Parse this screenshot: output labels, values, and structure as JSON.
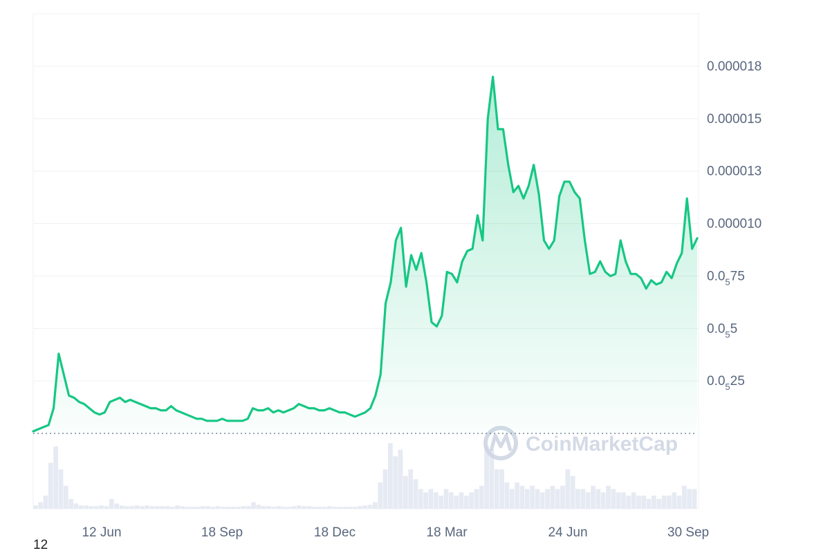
{
  "chart_data": {
    "type": "area",
    "x_tick_labels": [
      "12 Jun",
      "18 Sep",
      "18 Dec",
      "18 Mar",
      "24 Jun",
      "30 Sep"
    ],
    "y_ticks": [
      {
        "value": 2.5e-06,
        "label": {
          "main": "0.0",
          "sub": "5",
          "tail": "25"
        }
      },
      {
        "value": 5e-06,
        "label": {
          "main": "0.0",
          "sub": "5",
          "tail": "5"
        }
      },
      {
        "value": 7.5e-06,
        "label": {
          "main": "0.0",
          "sub": "5",
          "tail": "75"
        }
      },
      {
        "value": 1e-05,
        "label": {
          "main": "0.000010",
          "sub": "",
          "tail": ""
        }
      },
      {
        "value": 1.25e-05,
        "label": {
          "main": "0.000013",
          "sub": "",
          "tail": ""
        }
      },
      {
        "value": 1.5e-05,
        "label": {
          "main": "0.000015",
          "sub": "",
          "tail": ""
        }
      },
      {
        "value": 1.75e-05,
        "label": {
          "main": "0.000018",
          "sub": "",
          "tail": ""
        }
      }
    ],
    "ylim": [
      0,
      2e-05
    ],
    "reference_line": 0,
    "price_series": [
      [
        0,
        1e-07
      ],
      [
        1,
        2e-07
      ],
      [
        2,
        3e-07
      ],
      [
        3,
        4e-07
      ],
      [
        4,
        1.2e-06
      ],
      [
        5,
        3.8e-06
      ],
      [
        6,
        2.8e-06
      ],
      [
        7,
        1.8e-06
      ],
      [
        8,
        1.7e-06
      ],
      [
        9,
        1.5e-06
      ],
      [
        10,
        1.4e-06
      ],
      [
        11,
        1.2e-06
      ],
      [
        12,
        1e-06
      ],
      [
        13,
        9e-07
      ],
      [
        14,
        1e-06
      ],
      [
        15,
        1.5e-06
      ],
      [
        16,
        1.6e-06
      ],
      [
        17,
        1.7e-06
      ],
      [
        18,
        1.5e-06
      ],
      [
        19,
        1.6e-06
      ],
      [
        20,
        1.5e-06
      ],
      [
        21,
        1.4e-06
      ],
      [
        22,
        1.3e-06
      ],
      [
        23,
        1.2e-06
      ],
      [
        24,
        1.2e-06
      ],
      [
        25,
        1.1e-06
      ],
      [
        26,
        1.1e-06
      ],
      [
        27,
        1.3e-06
      ],
      [
        28,
        1.1e-06
      ],
      [
        29,
        1e-06
      ],
      [
        30,
        9e-07
      ],
      [
        31,
        8e-07
      ],
      [
        32,
        7e-07
      ],
      [
        33,
        7e-07
      ],
      [
        34,
        6e-07
      ],
      [
        35,
        6e-07
      ],
      [
        36,
        6e-07
      ],
      [
        37,
        7e-07
      ],
      [
        38,
        6e-07
      ],
      [
        39,
        6e-07
      ],
      [
        40,
        6e-07
      ],
      [
        41,
        6e-07
      ],
      [
        42,
        7e-07
      ],
      [
        43,
        1.2e-06
      ],
      [
        44,
        1.1e-06
      ],
      [
        45,
        1.1e-06
      ],
      [
        46,
        1.2e-06
      ],
      [
        47,
        1e-06
      ],
      [
        48,
        1.1e-06
      ],
      [
        49,
        1e-06
      ],
      [
        50,
        1.1e-06
      ],
      [
        51,
        1.2e-06
      ],
      [
        52,
        1.4e-06
      ],
      [
        53,
        1.3e-06
      ],
      [
        54,
        1.2e-06
      ],
      [
        55,
        1.2e-06
      ],
      [
        56,
        1.1e-06
      ],
      [
        57,
        1.1e-06
      ],
      [
        58,
        1.2e-06
      ],
      [
        59,
        1.1e-06
      ],
      [
        60,
        1e-06
      ],
      [
        61,
        1e-06
      ],
      [
        62,
        9e-07
      ],
      [
        63,
        8e-07
      ],
      [
        64,
        9e-07
      ],
      [
        65,
        1e-06
      ],
      [
        66,
        1.2e-06
      ],
      [
        67,
        1.8e-06
      ],
      [
        68,
        2.8e-06
      ],
      [
        69,
        6.2e-06
      ],
      [
        70,
        7.2e-06
      ],
      [
        71,
        9.2e-06
      ],
      [
        72,
        9.8e-06
      ],
      [
        73,
        7e-06
      ],
      [
        74,
        8.5e-06
      ],
      [
        75,
        7.8e-06
      ],
      [
        76,
        8.6e-06
      ],
      [
        77,
        7.2e-06
      ],
      [
        78,
        5.3e-06
      ],
      [
        79,
        5.1e-06
      ],
      [
        80,
        5.6e-06
      ],
      [
        81,
        7.7e-06
      ],
      [
        82,
        7.6e-06
      ],
      [
        83,
        7.2e-06
      ],
      [
        84,
        8.2e-06
      ],
      [
        85,
        8.7e-06
      ],
      [
        86,
        8.8e-06
      ],
      [
        87,
        1.04e-05
      ],
      [
        88,
        9.2e-06
      ],
      [
        89,
        1.5e-05
      ],
      [
        90,
        1.7e-05
      ],
      [
        91,
        1.45e-05
      ],
      [
        92,
        1.45e-05
      ],
      [
        93,
        1.28e-05
      ],
      [
        94,
        1.15e-05
      ],
      [
        95,
        1.18e-05
      ],
      [
        96,
        1.12e-05
      ],
      [
        97,
        1.18e-05
      ],
      [
        98,
        1.28e-05
      ],
      [
        99,
        1.14e-05
      ],
      [
        100,
        9.2e-06
      ],
      [
        101,
        8.8e-06
      ],
      [
        102,
        9.2e-06
      ],
      [
        103,
        1.13e-05
      ],
      [
        104,
        1.2e-05
      ],
      [
        105,
        1.2e-05
      ],
      [
        106,
        1.15e-05
      ],
      [
        107,
        1.12e-05
      ],
      [
        108,
        9.2e-06
      ],
      [
        109,
        7.6e-06
      ],
      [
        110,
        7.7e-06
      ],
      [
        111,
        8.2e-06
      ],
      [
        112,
        7.7e-06
      ],
      [
        113,
        7.5e-06
      ],
      [
        114,
        7.6e-06
      ],
      [
        115,
        9.2e-06
      ],
      [
        116,
        8.2e-06
      ],
      [
        117,
        7.6e-06
      ],
      [
        118,
        7.6e-06
      ],
      [
        119,
        7.4e-06
      ],
      [
        120,
        6.9e-06
      ],
      [
        121,
        7.3e-06
      ],
      [
        122,
        7.1e-06
      ],
      [
        123,
        7.2e-06
      ],
      [
        124,
        7.7e-06
      ],
      [
        125,
        7.4e-06
      ],
      [
        126,
        8.1e-06
      ],
      [
        127,
        8.6e-06
      ],
      [
        128,
        1.12e-05
      ],
      [
        129,
        8.8e-06
      ],
      [
        130,
        9.3e-06
      ]
    ],
    "volume_series": [
      0.05,
      0.1,
      0.2,
      0.7,
      0.95,
      0.6,
      0.35,
      0.15,
      0.08,
      0.05,
      0.05,
      0.04,
      0.04,
      0.05,
      0.04,
      0.15,
      0.08,
      0.05,
      0.04,
      0.04,
      0.05,
      0.04,
      0.05,
      0.04,
      0.04,
      0.04,
      0.04,
      0.03,
      0.05,
      0.04,
      0.03,
      0.03,
      0.03,
      0.04,
      0.04,
      0.03,
      0.04,
      0.03,
      0.03,
      0.03,
      0.03,
      0.04,
      0.04,
      0.1,
      0.06,
      0.04,
      0.04,
      0.03,
      0.04,
      0.03,
      0.03,
      0.04,
      0.05,
      0.04,
      0.04,
      0.03,
      0.03,
      0.03,
      0.04,
      0.03,
      0.03,
      0.03,
      0.03,
      0.03,
      0.04,
      0.05,
      0.06,
      0.1,
      0.4,
      0.6,
      1.0,
      0.8,
      0.9,
      0.5,
      0.6,
      0.45,
      0.3,
      0.25,
      0.3,
      0.25,
      0.2,
      0.3,
      0.25,
      0.2,
      0.25,
      0.2,
      0.25,
      0.3,
      0.35,
      0.95,
      0.9,
      0.6,
      0.6,
      0.4,
      0.3,
      0.4,
      0.35,
      0.3,
      0.35,
      0.3,
      0.25,
      0.3,
      0.35,
      0.3,
      0.35,
      0.6,
      0.5,
      0.3,
      0.3,
      0.25,
      0.35,
      0.3,
      0.25,
      0.35,
      0.3,
      0.25,
      0.25,
      0.2,
      0.25,
      0.2,
      0.2,
      0.15,
      0.2,
      0.15,
      0.2,
      0.2,
      0.25,
      0.2,
      0.35,
      0.3,
      0.3
    ],
    "colors": {
      "line": "#16c784",
      "volume": "#e6eaf2",
      "grid": "#eef0f4",
      "reference": "#7a8699",
      "axis_text": "#58667e"
    }
  },
  "watermark": "CoinMarketCap",
  "corner_label": "12"
}
